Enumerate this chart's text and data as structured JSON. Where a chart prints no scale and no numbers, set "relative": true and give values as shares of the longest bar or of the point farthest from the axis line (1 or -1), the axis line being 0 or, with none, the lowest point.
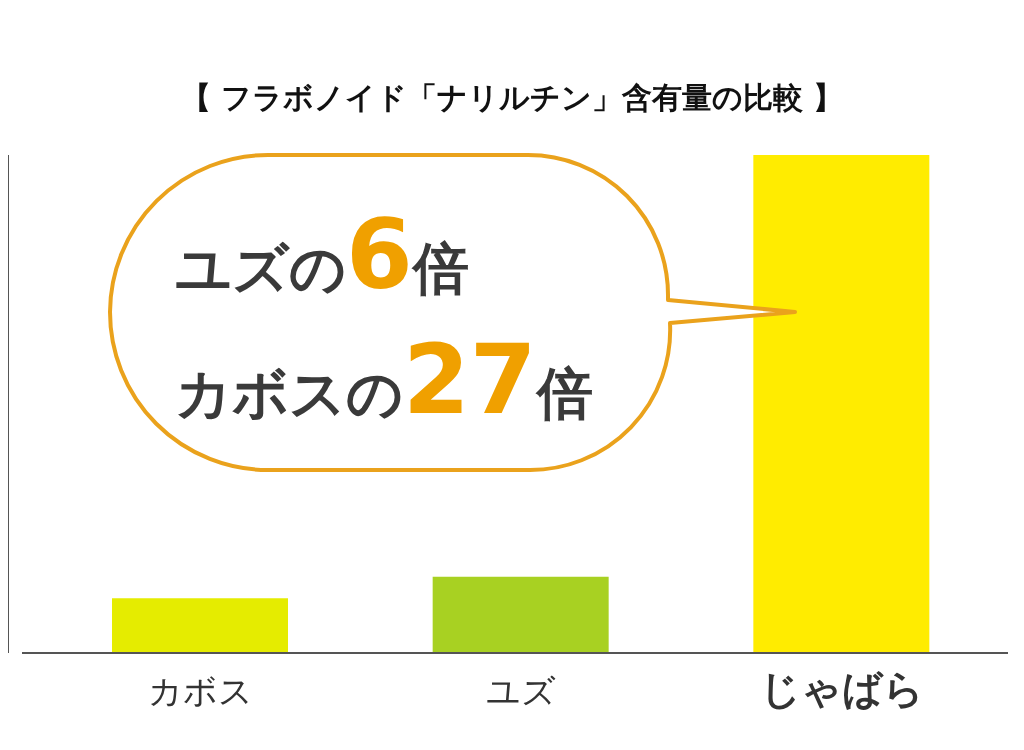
{
  "chart_data": {
    "type": "bar",
    "title": "【 フラボノイド「ナリルチン」含有量の比較 】",
    "relative": true,
    "categories": [
      "カボス",
      "ユズ",
      "じゃばら"
    ],
    "values": [
      0.11,
      0.153,
      1
    ],
    "colors": [
      "#e5ec00",
      "#a8d122",
      "#ffec00"
    ],
    "annotations": [
      "ユズの6倍",
      "カボスの27倍"
    ]
  }
}
